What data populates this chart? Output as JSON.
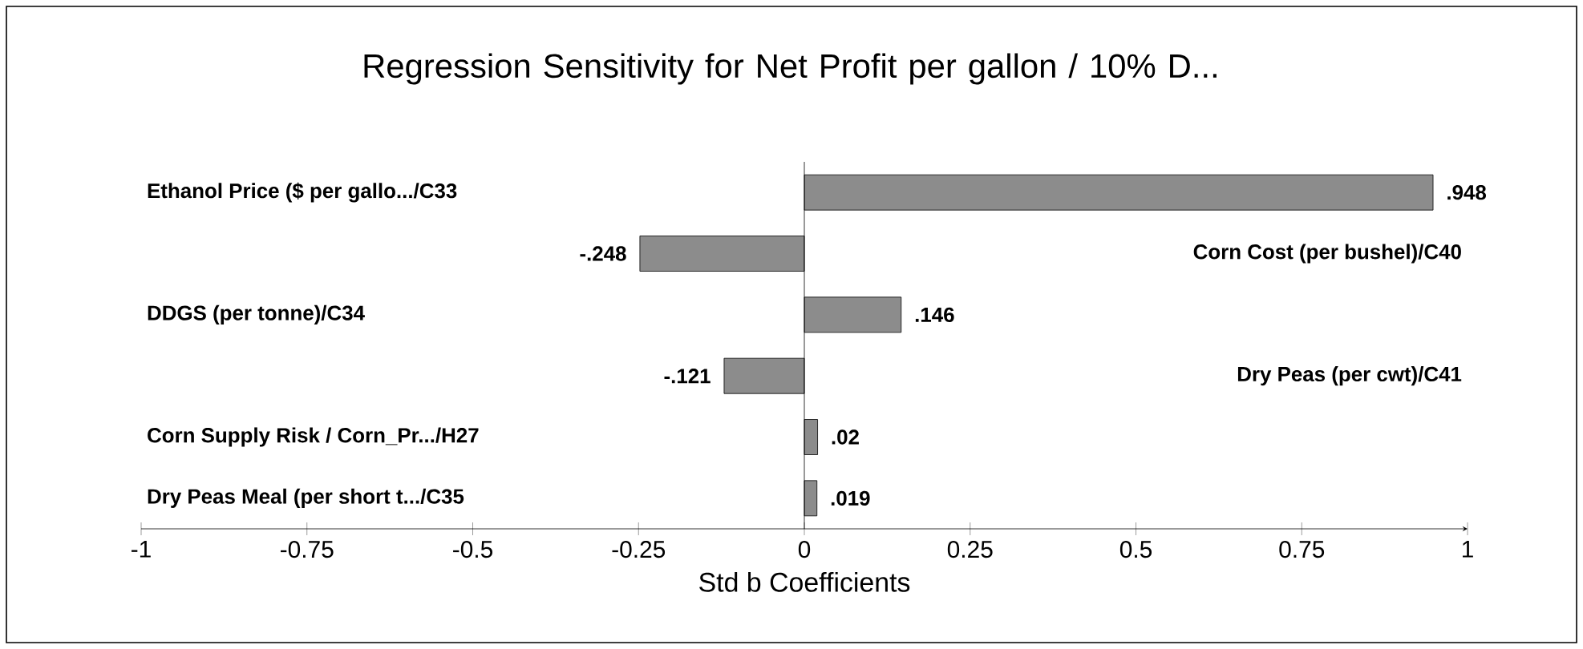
{
  "chart_data": {
    "type": "bar",
    "orientation": "horizontal",
    "title": "Regression Sensitivity for Net Profit per gallon / 10% D...",
    "xlabel": "Std b Coefficients",
    "categories": [
      "Ethanol Price ($ per gallo.../C33",
      "Corn Cost (per bushel)/C40",
      "DDGS (per tonne)/C34",
      "Dry Peas (per cwt)/C41",
      "Corn Supply Risk / Corn_Pr.../H27",
      "Dry Peas Meal (per short t.../C35"
    ],
    "values": [
      0.948,
      -0.248,
      0.146,
      -0.121,
      0.02,
      0.019
    ],
    "value_labels": [
      ".948",
      "-.248",
      ".146",
      "-.121",
      ".02",
      ".019"
    ],
    "color": "#8c8c8c",
    "xlim": [
      -1,
      1
    ],
    "xticks": [
      -1,
      -0.75,
      -0.5,
      -0.25,
      0,
      0.25,
      0.5,
      0.75,
      1
    ]
  }
}
